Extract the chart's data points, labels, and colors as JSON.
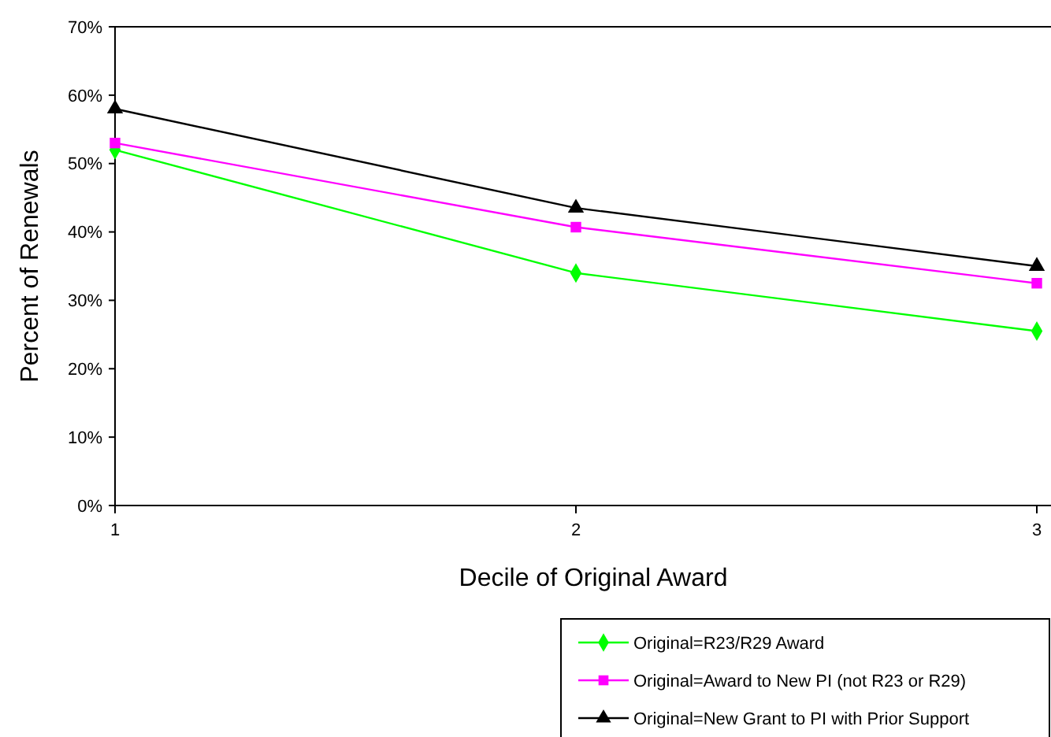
{
  "chart_data": {
    "type": "line",
    "xlabel": "Decile of Original Award",
    "ylabel": "Percent of Renewals",
    "categories": [
      "1",
      "2",
      "3"
    ],
    "ylim": [
      0,
      70
    ],
    "yticks": [
      {
        "value": 0,
        "label": "0%"
      },
      {
        "value": 10,
        "label": "10%"
      },
      {
        "value": 20,
        "label": "20%"
      },
      {
        "value": 30,
        "label": "30%"
      },
      {
        "value": 40,
        "label": "40%"
      },
      {
        "value": 50,
        "label": "50%"
      },
      {
        "value": 60,
        "label": "60%"
      },
      {
        "value": 70,
        "label": "70%"
      }
    ],
    "grid": false,
    "legend": "bottom right",
    "line_style": "solid",
    "series": [
      {
        "name": "Original=R23/R29 Award",
        "color": "#00ff00",
        "marker": "diamond",
        "values": [
          52,
          34,
          25.5
        ]
      },
      {
        "name": "Original=Award to New PI (not R23 or R29)",
        "color": "#ff00ff",
        "marker": "square",
        "values": [
          53,
          40.7,
          32.5
        ]
      },
      {
        "name": "Original=New Grant to PI with Prior Support",
        "color": "#000000",
        "marker": "triangle",
        "values": [
          58,
          43.5,
          35
        ]
      }
    ]
  }
}
